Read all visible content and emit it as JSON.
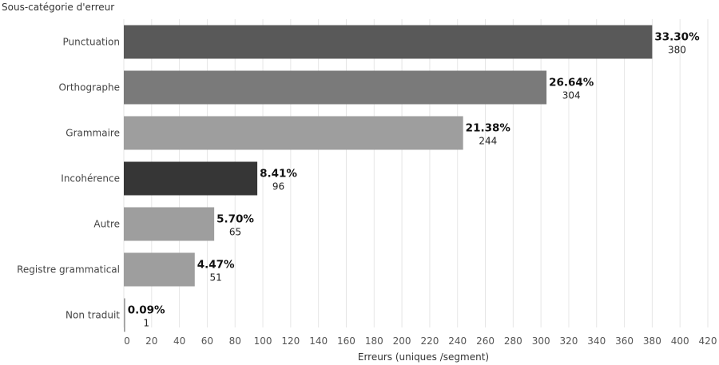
{
  "chart_data": {
    "type": "bar",
    "orientation": "horizontal",
    "title": "",
    "ylabel": "Sous-catégorie d'erreur",
    "xlabel": "Erreurs (uniques /segment)",
    "xlim": [
      0,
      420
    ],
    "xticks": [
      0,
      20,
      40,
      60,
      80,
      100,
      120,
      140,
      160,
      180,
      200,
      220,
      240,
      260,
      280,
      300,
      320,
      340,
      360,
      380,
      400,
      420
    ],
    "grid": true,
    "categories": [
      "Punctuation",
      "Orthographe",
      "Grammaire",
      "Incohérence",
      "Autre",
      "Registre grammatical",
      "Non traduit"
    ],
    "values": [
      380,
      304,
      244,
      96,
      65,
      51,
      1
    ],
    "percent_labels": [
      "33.30%",
      "26.64%",
      "21.38%",
      "8.41%",
      "5.70%",
      "4.47%",
      "0.09%"
    ],
    "count_labels": [
      "380",
      "304",
      "244",
      "96",
      "65",
      "51",
      "1"
    ],
    "colors": [
      "#595959",
      "#7a7a7a",
      "#9e9e9e",
      "#363636",
      "#9e9e9e",
      "#9e9e9e",
      "#9e9e9e"
    ]
  }
}
